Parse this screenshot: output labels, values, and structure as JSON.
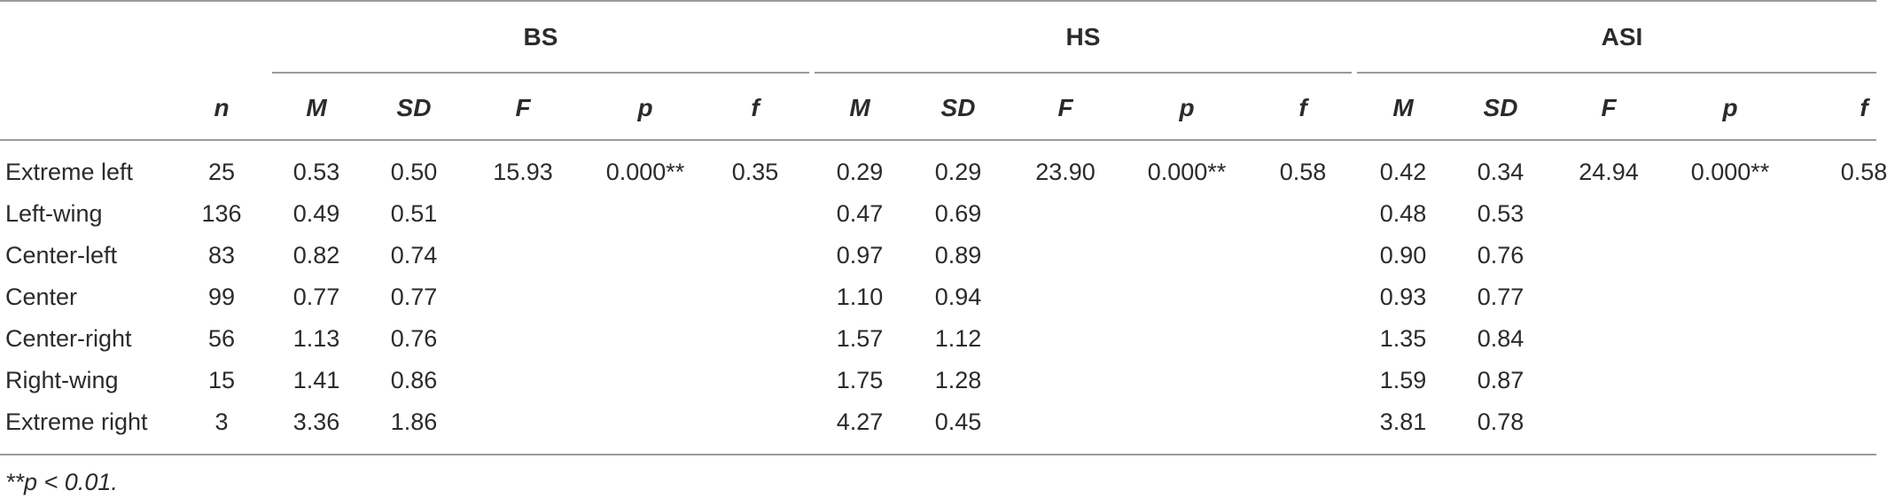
{
  "table": {
    "groups": [
      "BS",
      "HS",
      "ASI"
    ],
    "n_header": "n",
    "subheaders": [
      "M",
      "SD",
      "F",
      "p",
      "f"
    ],
    "rows": [
      {
        "label": "Extreme left",
        "n": "25",
        "bs": [
          "0.53",
          "0.50",
          "15.93",
          "0.000**",
          "0.35"
        ],
        "hs": [
          "0.29",
          "0.29",
          "23.90",
          "0.000**",
          "0.58"
        ],
        "asi": [
          "0.42",
          "0.34",
          "24.94",
          "0.000**",
          "0.58"
        ]
      },
      {
        "label": "Left-wing",
        "n": "136",
        "bs": [
          "0.49",
          "0.51",
          "",
          "",
          ""
        ],
        "hs": [
          "0.47",
          "0.69",
          "",
          "",
          ""
        ],
        "asi": [
          "0.48",
          "0.53",
          "",
          "",
          ""
        ]
      },
      {
        "label": "Center-left",
        "n": "83",
        "bs": [
          "0.82",
          "0.74",
          "",
          "",
          ""
        ],
        "hs": [
          "0.97",
          "0.89",
          "",
          "",
          ""
        ],
        "asi": [
          "0.90",
          "0.76",
          "",
          "",
          ""
        ]
      },
      {
        "label": "Center",
        "n": "99",
        "bs": [
          "0.77",
          "0.77",
          "",
          "",
          ""
        ],
        "hs": [
          "1.10",
          "0.94",
          "",
          "",
          ""
        ],
        "asi": [
          "0.93",
          "0.77",
          "",
          "",
          ""
        ]
      },
      {
        "label": "Center-right",
        "n": "56",
        "bs": [
          "1.13",
          "0.76",
          "",
          "",
          ""
        ],
        "hs": [
          "1.57",
          "1.12",
          "",
          "",
          ""
        ],
        "asi": [
          "1.35",
          "0.84",
          "",
          "",
          ""
        ]
      },
      {
        "label": "Right-wing",
        "n": "15",
        "bs": [
          "1.41",
          "0.86",
          "",
          "",
          ""
        ],
        "hs": [
          "1.75",
          "1.28",
          "",
          "",
          ""
        ],
        "asi": [
          "1.59",
          "0.87",
          "",
          "",
          ""
        ]
      },
      {
        "label": "Extreme right",
        "n": "3",
        "bs": [
          "3.36",
          "1.86",
          "",
          "",
          ""
        ],
        "hs": [
          "4.27",
          "0.45",
          "",
          "",
          ""
        ],
        "asi": [
          "3.81",
          "0.78",
          "",
          "",
          ""
        ]
      }
    ],
    "footnote": "**p < 0.01."
  }
}
